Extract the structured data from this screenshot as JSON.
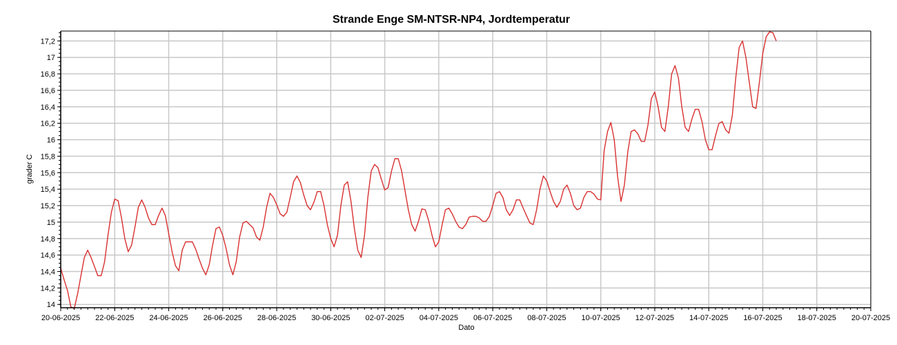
{
  "chart_data": {
    "type": "line",
    "title": "Strande Enge SM-NTSR-NP4, Jordtemperatur",
    "xlabel": "Dato",
    "ylabel": "grader C",
    "x_axis_type": "date",
    "xlim": [
      "2025-06-20",
      "2025-07-20"
    ],
    "ylim": [
      13.96,
      17.32
    ],
    "grid": true,
    "legend": "none",
    "x_ticks": [
      {
        "date": "2025-06-20",
        "label": "20-06-2025"
      },
      {
        "date": "2025-06-22",
        "label": "22-06-2025"
      },
      {
        "date": "2025-06-24",
        "label": "24-06-2025"
      },
      {
        "date": "2025-06-26",
        "label": "26-06-2025"
      },
      {
        "date": "2025-06-28",
        "label": "28-06-2025"
      },
      {
        "date": "2025-06-30",
        "label": "30-06-2025"
      },
      {
        "date": "2025-07-02",
        "label": "02-07-2025"
      },
      {
        "date": "2025-07-04",
        "label": "04-07-2025"
      },
      {
        "date": "2025-07-06",
        "label": "06-07-2025"
      },
      {
        "date": "2025-07-08",
        "label": "08-07-2025"
      },
      {
        "date": "2025-07-10",
        "label": "10-07-2025"
      },
      {
        "date": "2025-07-12",
        "label": "12-07-2025"
      },
      {
        "date": "2025-07-14",
        "label": "14-07-2025"
      },
      {
        "date": "2025-07-16",
        "label": "16-07-2025"
      },
      {
        "date": "2025-07-18",
        "label": "18-07-2025"
      },
      {
        "date": "2025-07-20",
        "label": "20-07-2025"
      }
    ],
    "y_ticks": [
      {
        "value": 14.0,
        "label": "14"
      },
      {
        "value": 14.2,
        "label": "14,2"
      },
      {
        "value": 14.4,
        "label": "14,4"
      },
      {
        "value": 14.6,
        "label": "14,6"
      },
      {
        "value": 14.8,
        "label": "14,8"
      },
      {
        "value": 15.0,
        "label": "15"
      },
      {
        "value": 15.2,
        "label": "15,2"
      },
      {
        "value": 15.4,
        "label": "15,4"
      },
      {
        "value": 15.6,
        "label": "15,6"
      },
      {
        "value": 15.8,
        "label": "15,8"
      },
      {
        "value": 16.0,
        "label": "16"
      },
      {
        "value": 16.2,
        "label": "16,2"
      },
      {
        "value": 16.4,
        "label": "16,4"
      },
      {
        "value": 16.6,
        "label": "16,6"
      },
      {
        "value": 16.8,
        "label": "16,8"
      },
      {
        "value": 17.0,
        "label": "17"
      },
      {
        "value": 17.2,
        "label": "17,2"
      }
    ],
    "series": [
      {
        "color": "#d93030",
        "points": [
          [
            "2025-06-20T00:00",
            14.44
          ],
          [
            "2025-06-20T03:00",
            14.3
          ],
          [
            "2025-06-20T06:00",
            14.17
          ],
          [
            "2025-06-20T09:00",
            13.97
          ],
          [
            "2025-06-20T12:00",
            13.95
          ],
          [
            "2025-06-20T15:00",
            14.13
          ],
          [
            "2025-06-20T18:00",
            14.35
          ],
          [
            "2025-06-20T21:00",
            14.57
          ],
          [
            "2025-06-21T00:00",
            14.66
          ],
          [
            "2025-06-21T03:00",
            14.57
          ],
          [
            "2025-06-21T06:00",
            14.46
          ],
          [
            "2025-06-21T09:00",
            14.35
          ],
          [
            "2025-06-21T12:00",
            14.35
          ],
          [
            "2025-06-21T15:00",
            14.52
          ],
          [
            "2025-06-21T18:00",
            14.84
          ],
          [
            "2025-06-21T21:00",
            15.12
          ],
          [
            "2025-06-22T00:00",
            15.28
          ],
          [
            "2025-06-22T03:00",
            15.26
          ],
          [
            "2025-06-22T06:00",
            15.05
          ],
          [
            "2025-06-22T09:00",
            14.8
          ],
          [
            "2025-06-22T12:00",
            14.64
          ],
          [
            "2025-06-22T15:00",
            14.72
          ],
          [
            "2025-06-22T18:00",
            14.94
          ],
          [
            "2025-06-22T21:00",
            15.18
          ],
          [
            "2025-06-23T00:00",
            15.27
          ],
          [
            "2025-06-23T03:00",
            15.18
          ],
          [
            "2025-06-23T06:00",
            15.05
          ],
          [
            "2025-06-23T09:00",
            14.97
          ],
          [
            "2025-06-23T12:00",
            14.97
          ],
          [
            "2025-06-23T15:00",
            15.08
          ],
          [
            "2025-06-23T18:00",
            15.17
          ],
          [
            "2025-06-23T21:00",
            15.08
          ],
          [
            "2025-06-24T00:00",
            14.86
          ],
          [
            "2025-06-24T03:00",
            14.64
          ],
          [
            "2025-06-24T06:00",
            14.47
          ],
          [
            "2025-06-24T09:00",
            14.41
          ],
          [
            "2025-06-24T12:00",
            14.66
          ],
          [
            "2025-06-24T15:00",
            14.76
          ],
          [
            "2025-06-24T18:00",
            14.76
          ],
          [
            "2025-06-24T21:00",
            14.76
          ],
          [
            "2025-06-25T00:00",
            14.67
          ],
          [
            "2025-06-25T03:00",
            14.55
          ],
          [
            "2025-06-25T06:00",
            14.44
          ],
          [
            "2025-06-25T09:00",
            14.36
          ],
          [
            "2025-06-25T12:00",
            14.48
          ],
          [
            "2025-06-25T15:00",
            14.72
          ],
          [
            "2025-06-25T18:00",
            14.92
          ],
          [
            "2025-06-25T21:00",
            14.94
          ],
          [
            "2025-06-26T00:00",
            14.84
          ],
          [
            "2025-06-26T03:00",
            14.68
          ],
          [
            "2025-06-26T06:00",
            14.48
          ],
          [
            "2025-06-26T09:00",
            14.36
          ],
          [
            "2025-06-26T12:00",
            14.52
          ],
          [
            "2025-06-26T15:00",
            14.82
          ],
          [
            "2025-06-26T18:00",
            14.99
          ],
          [
            "2025-06-26T21:00",
            15.01
          ],
          [
            "2025-06-27T00:00",
            14.97
          ],
          [
            "2025-06-27T03:00",
            14.93
          ],
          [
            "2025-06-27T06:00",
            14.82
          ],
          [
            "2025-06-27T09:00",
            14.78
          ],
          [
            "2025-06-27T12:00",
            14.94
          ],
          [
            "2025-06-27T15:00",
            15.18
          ],
          [
            "2025-06-27T18:00",
            15.35
          ],
          [
            "2025-06-27T21:00",
            15.3
          ],
          [
            "2025-06-28T00:00",
            15.21
          ],
          [
            "2025-06-28T03:00",
            15.1
          ],
          [
            "2025-06-28T06:00",
            15.07
          ],
          [
            "2025-06-28T09:00",
            15.12
          ],
          [
            "2025-06-28T12:00",
            15.3
          ],
          [
            "2025-06-28T15:00",
            15.49
          ],
          [
            "2025-06-28T18:00",
            15.56
          ],
          [
            "2025-06-28T21:00",
            15.48
          ],
          [
            "2025-06-29T00:00",
            15.33
          ],
          [
            "2025-06-29T03:00",
            15.2
          ],
          [
            "2025-06-29T06:00",
            15.15
          ],
          [
            "2025-06-29T09:00",
            15.24
          ],
          [
            "2025-06-29T12:00",
            15.37
          ],
          [
            "2025-06-29T15:00",
            15.37
          ],
          [
            "2025-06-29T18:00",
            15.2
          ],
          [
            "2025-06-29T21:00",
            14.97
          ],
          [
            "2025-06-30T00:00",
            14.8
          ],
          [
            "2025-06-30T03:00",
            14.7
          ],
          [
            "2025-06-30T06:00",
            14.84
          ],
          [
            "2025-06-30T09:00",
            15.2
          ],
          [
            "2025-06-30T12:00",
            15.45
          ],
          [
            "2025-06-30T15:00",
            15.49
          ],
          [
            "2025-06-30T18:00",
            15.25
          ],
          [
            "2025-06-30T21:00",
            14.92
          ],
          [
            "2025-07-01T00:00",
            14.66
          ],
          [
            "2025-07-01T03:00",
            14.57
          ],
          [
            "2025-07-01T06:00",
            14.84
          ],
          [
            "2025-07-01T09:00",
            15.3
          ],
          [
            "2025-07-01T12:00",
            15.62
          ],
          [
            "2025-07-01T15:00",
            15.7
          ],
          [
            "2025-07-01T18:00",
            15.66
          ],
          [
            "2025-07-01T21:00",
            15.52
          ],
          [
            "2025-07-02T00:00",
            15.39
          ],
          [
            "2025-07-02T03:00",
            15.42
          ],
          [
            "2025-07-02T06:00",
            15.62
          ],
          [
            "2025-07-02T09:00",
            15.77
          ],
          [
            "2025-07-02T12:00",
            15.77
          ],
          [
            "2025-07-02T15:00",
            15.62
          ],
          [
            "2025-07-02T18:00",
            15.38
          ],
          [
            "2025-07-02T21:00",
            15.15
          ],
          [
            "2025-07-03T00:00",
            14.97
          ],
          [
            "2025-07-03T03:00",
            14.89
          ],
          [
            "2025-07-03T06:00",
            15.01
          ],
          [
            "2025-07-03T09:00",
            15.16
          ],
          [
            "2025-07-03T12:00",
            15.15
          ],
          [
            "2025-07-03T15:00",
            15.02
          ],
          [
            "2025-07-03T18:00",
            14.84
          ],
          [
            "2025-07-03T21:00",
            14.7
          ],
          [
            "2025-07-04T00:00",
            14.76
          ],
          [
            "2025-07-04T03:00",
            14.97
          ],
          [
            "2025-07-04T06:00",
            15.15
          ],
          [
            "2025-07-04T09:00",
            15.17
          ],
          [
            "2025-07-04T12:00",
            15.1
          ],
          [
            "2025-07-04T15:00",
            15.01
          ],
          [
            "2025-07-04T18:00",
            14.94
          ],
          [
            "2025-07-04T21:00",
            14.92
          ],
          [
            "2025-07-05T00:00",
            14.97
          ],
          [
            "2025-07-05T03:00",
            15.06
          ],
          [
            "2025-07-05T06:00",
            15.07
          ],
          [
            "2025-07-05T09:00",
            15.07
          ],
          [
            "2025-07-05T12:00",
            15.05
          ],
          [
            "2025-07-05T15:00",
            15.01
          ],
          [
            "2025-07-05T18:00",
            15.01
          ],
          [
            "2025-07-05T21:00",
            15.07
          ],
          [
            "2025-07-06T00:00",
            15.2
          ],
          [
            "2025-07-06T03:00",
            15.35
          ],
          [
            "2025-07-06T06:00",
            15.37
          ],
          [
            "2025-07-06T09:00",
            15.3
          ],
          [
            "2025-07-06T12:00",
            15.15
          ],
          [
            "2025-07-06T15:00",
            15.08
          ],
          [
            "2025-07-06T18:00",
            15.15
          ],
          [
            "2025-07-06T21:00",
            15.27
          ],
          [
            "2025-07-07T00:00",
            15.27
          ],
          [
            "2025-07-07T03:00",
            15.17
          ],
          [
            "2025-07-07T06:00",
            15.08
          ],
          [
            "2025-07-07T09:00",
            14.99
          ],
          [
            "2025-07-07T12:00",
            14.97
          ],
          [
            "2025-07-07T15:00",
            15.15
          ],
          [
            "2025-07-07T18:00",
            15.4
          ],
          [
            "2025-07-07T21:00",
            15.56
          ],
          [
            "2025-07-08T00:00",
            15.5
          ],
          [
            "2025-07-08T03:00",
            15.37
          ],
          [
            "2025-07-08T06:00",
            15.25
          ],
          [
            "2025-07-08T09:00",
            15.18
          ],
          [
            "2025-07-08T12:00",
            15.25
          ],
          [
            "2025-07-08T15:00",
            15.4
          ],
          [
            "2025-07-08T18:00",
            15.45
          ],
          [
            "2025-07-08T21:00",
            15.35
          ],
          [
            "2025-07-09T00:00",
            15.2
          ],
          [
            "2025-07-09T03:00",
            15.15
          ],
          [
            "2025-07-09T06:00",
            15.17
          ],
          [
            "2025-07-09T09:00",
            15.3
          ],
          [
            "2025-07-09T12:00",
            15.37
          ],
          [
            "2025-07-09T15:00",
            15.37
          ],
          [
            "2025-07-09T18:00",
            15.34
          ],
          [
            "2025-07-09T21:00",
            15.28
          ],
          [
            "2025-07-10T00:00",
            15.27
          ],
          [
            "2025-07-10T03:00",
            15.87
          ],
          [
            "2025-07-10T06:00",
            16.1
          ],
          [
            "2025-07-10T09:00",
            16.21
          ],
          [
            "2025-07-10T12:00",
            16.0
          ],
          [
            "2025-07-10T15:00",
            15.55
          ],
          [
            "2025-07-10T18:00",
            15.25
          ],
          [
            "2025-07-10T21:00",
            15.45
          ],
          [
            "2025-07-11T00:00",
            15.85
          ],
          [
            "2025-07-11T03:00",
            16.1
          ],
          [
            "2025-07-11T06:00",
            16.12
          ],
          [
            "2025-07-11T09:00",
            16.07
          ],
          [
            "2025-07-11T12:00",
            15.98
          ],
          [
            "2025-07-11T15:00",
            15.98
          ],
          [
            "2025-07-11T18:00",
            16.18
          ],
          [
            "2025-07-11T21:00",
            16.5
          ],
          [
            "2025-07-12T00:00",
            16.58
          ],
          [
            "2025-07-12T03:00",
            16.4
          ],
          [
            "2025-07-12T06:00",
            16.15
          ],
          [
            "2025-07-12T09:00",
            16.1
          ],
          [
            "2025-07-12T12:00",
            16.4
          ],
          [
            "2025-07-12T15:00",
            16.8
          ],
          [
            "2025-07-12T18:00",
            16.9
          ],
          [
            "2025-07-12T21:00",
            16.75
          ],
          [
            "2025-07-13T00:00",
            16.4
          ],
          [
            "2025-07-13T03:00",
            16.15
          ],
          [
            "2025-07-13T06:00",
            16.1
          ],
          [
            "2025-07-13T09:00",
            16.25
          ],
          [
            "2025-07-13T12:00",
            16.37
          ],
          [
            "2025-07-13T15:00",
            16.37
          ],
          [
            "2025-07-13T18:00",
            16.22
          ],
          [
            "2025-07-13T21:00",
            16.0
          ],
          [
            "2025-07-14T00:00",
            15.88
          ],
          [
            "2025-07-14T03:00",
            15.88
          ],
          [
            "2025-07-14T06:00",
            16.05
          ],
          [
            "2025-07-14T09:00",
            16.2
          ],
          [
            "2025-07-14T12:00",
            16.22
          ],
          [
            "2025-07-14T15:00",
            16.12
          ],
          [
            "2025-07-14T18:00",
            16.08
          ],
          [
            "2025-07-14T21:00",
            16.3
          ],
          [
            "2025-07-15T00:00",
            16.75
          ],
          [
            "2025-07-15T03:00",
            17.12
          ],
          [
            "2025-07-15T06:00",
            17.2
          ],
          [
            "2025-07-15T09:00",
            17.0
          ],
          [
            "2025-07-15T12:00",
            16.7
          ],
          [
            "2025-07-15T15:00",
            16.4
          ],
          [
            "2025-07-15T18:00",
            16.38
          ],
          [
            "2025-07-15T21:00",
            16.7
          ],
          [
            "2025-07-16T00:00",
            17.05
          ],
          [
            "2025-07-16T03:00",
            17.25
          ],
          [
            "2025-07-16T06:00",
            17.31
          ],
          [
            "2025-07-16T09:00",
            17.3
          ],
          [
            "2025-07-16T12:00",
            17.2
          ]
        ]
      }
    ]
  }
}
